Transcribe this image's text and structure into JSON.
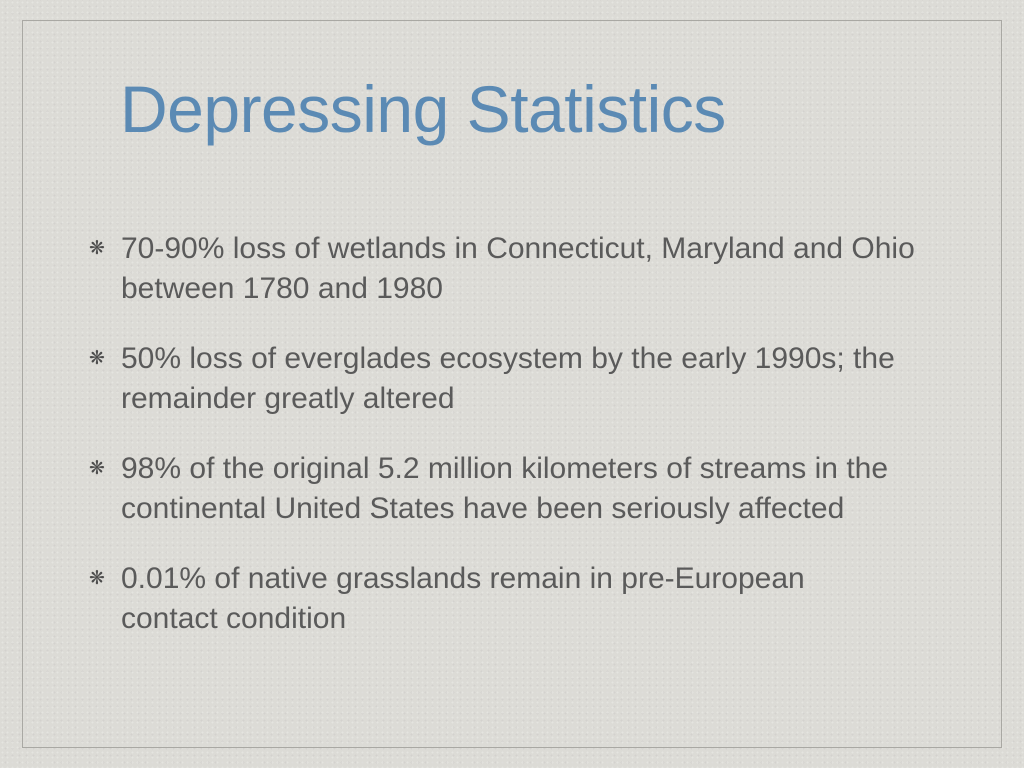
{
  "slide": {
    "title": "Depressing Statistics",
    "colors": {
      "title": "#5b8ab4",
      "body": "#5a5a5a",
      "background": "#dcdbd6",
      "frame": "#a9a8a3"
    },
    "bullet_icon": "asterisk-bullet-icon",
    "bullets": [
      {
        "text": "70-90% loss of wetlands in Connecticut, Maryland and Ohio between 1780 and 1980"
      },
      {
        "text": "50% loss of everglades ecosystem by the early 1990s; the remainder greatly altered"
      },
      {
        "text": "98% of the original 5.2 million kilometers of streams in the continental United States have been seriously affected"
      },
      {
        "text": "0.01% of native grasslands remain in pre-European contact condition"
      }
    ]
  }
}
